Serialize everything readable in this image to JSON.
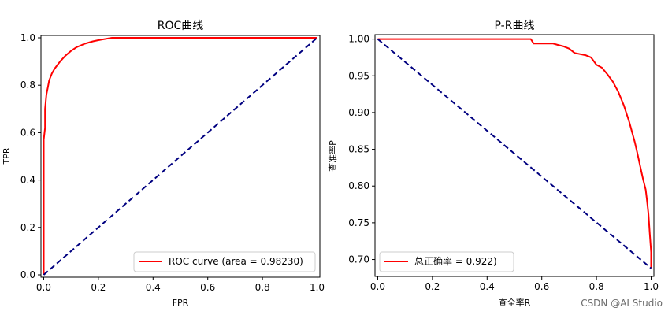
{
  "watermark": "CSDN @AI Studio",
  "chart_data": [
    {
      "type": "line",
      "title": "ROC曲线",
      "xlabel": "FPR",
      "ylabel": "TPR",
      "xlim": [
        -0.01,
        1.01
      ],
      "ylim": [
        -0.01,
        1.01
      ],
      "xticks": [
        "0.0",
        "0.2",
        "0.4",
        "0.6",
        "0.8",
        "1.0"
      ],
      "yticks": [
        "0.0",
        "0.2",
        "0.4",
        "0.6",
        "0.8",
        "1.0"
      ],
      "grid": false,
      "legend_position": "lower-right",
      "series": [
        {
          "name": "ROC curve (area = 0.98230)",
          "color": "#ff0000",
          "style": "solid",
          "x": [
            0,
            0,
            0.005,
            0.005,
            0.01,
            0.015,
            0.02,
            0.03,
            0.04,
            0.05,
            0.06,
            0.08,
            0.1,
            0.12,
            0.15,
            0.18,
            0.2,
            0.25,
            0.3,
            1.0
          ],
          "y": [
            0,
            0.57,
            0.62,
            0.7,
            0.76,
            0.79,
            0.82,
            0.85,
            0.87,
            0.885,
            0.9,
            0.925,
            0.945,
            0.96,
            0.975,
            0.985,
            0.99,
            1.0,
            1.0,
            1.0
          ]
        },
        {
          "name": "",
          "color": "#000080",
          "style": "dashed",
          "x": [
            0,
            1
          ],
          "y": [
            0,
            1
          ]
        }
      ]
    },
    {
      "type": "line",
      "title": "P-R曲线",
      "xlabel": "查全率R",
      "ylabel": "查准率P",
      "xlim": [
        -0.01,
        1.01
      ],
      "ylim": [
        0.677,
        1.006
      ],
      "xticks": [
        "0.0",
        "0.2",
        "0.4",
        "0.6",
        "0.8",
        "1.0"
      ],
      "yticks": [
        "0.70",
        "0.75",
        "0.80",
        "0.85",
        "0.90",
        "0.95",
        "1.00"
      ],
      "grid": false,
      "legend_position": "lower-left",
      "series": [
        {
          "name": "总正确率 = 0.922)",
          "color": "#ff0000",
          "style": "solid",
          "x": [
            0,
            0.56,
            0.57,
            0.6,
            0.64,
            0.66,
            0.68,
            0.7,
            0.72,
            0.76,
            0.78,
            0.8,
            0.82,
            0.84,
            0.86,
            0.88,
            0.9,
            0.92,
            0.94,
            0.95,
            0.96,
            0.97,
            0.98,
            0.985,
            0.99,
            0.995,
            1.0,
            1.0
          ],
          "y": [
            1.0,
            1.0,
            0.994,
            0.994,
            0.994,
            0.992,
            0.99,
            0.987,
            0.981,
            0.978,
            0.975,
            0.965,
            0.961,
            0.952,
            0.942,
            0.928,
            0.91,
            0.887,
            0.86,
            0.844,
            0.827,
            0.81,
            0.795,
            0.78,
            0.762,
            0.735,
            0.71,
            0.688
          ]
        },
        {
          "name": "",
          "color": "#000080",
          "style": "dashed",
          "x": [
            0,
            1
          ],
          "y": [
            1.0,
            0.688
          ]
        }
      ]
    }
  ]
}
